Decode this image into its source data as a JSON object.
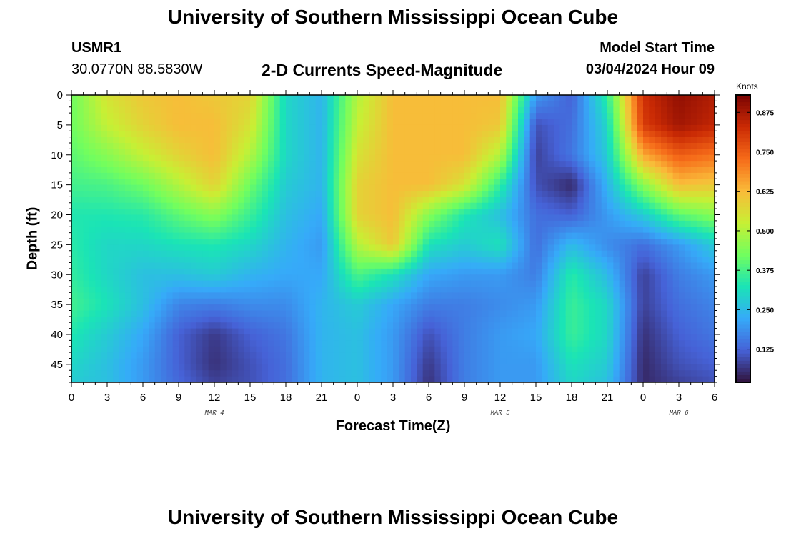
{
  "header": {
    "title": "University of Southern Mississippi Ocean Cube",
    "station_id": "USMR1",
    "coordinates": "30.0770N  88.5830W",
    "subtitle": "2-D Currents Speed-Magnitude",
    "model_start_label": "Model Start Time",
    "model_start_value": "03/04/2024 Hour 09"
  },
  "footer": {
    "title": "University of Southern Mississippi Ocean Cube"
  },
  "colorbar": {
    "units": "Knots",
    "ticks": [
      "0.125",
      "0.250",
      "0.375",
      "0.500",
      "0.625",
      "0.750",
      "0.875"
    ],
    "tick_values": [
      0.125,
      0.25,
      0.375,
      0.5,
      0.625,
      0.75,
      0.875
    ],
    "range": [
      0.02,
      0.93
    ],
    "colors": [
      "#30123b",
      "#4662d7",
      "#36aaf9",
      "#1ae4b6",
      "#72fe5e",
      "#c8ef34",
      "#faba39",
      "#f66b19",
      "#ca2a04",
      "#7a0403"
    ]
  },
  "chart_data": {
    "type": "heatmap",
    "title": "2-D Currents Speed-Magnitude",
    "xlabel": "Forecast Time(Z)",
    "ylabel": "Depth (ft)",
    "x_range_hours": [
      0,
      54
    ],
    "y_range_ft": [
      0,
      48
    ],
    "x_ticks": [
      "0",
      "3",
      "6",
      "9",
      "12",
      "15",
      "18",
      "21",
      "0",
      "3",
      "6",
      "9",
      "12",
      "15",
      "18",
      "21",
      "0",
      "3",
      "6"
    ],
    "y_ticks": [
      "0",
      "5",
      "10",
      "15",
      "20",
      "25",
      "30",
      "35",
      "40",
      "45"
    ],
    "date_labels": [
      {
        "label": "MAR 4",
        "hour": 12
      },
      {
        "label": "MAR 5",
        "hour": 36
      },
      {
        "label": "MAR 6",
        "hour": 51
      }
    ],
    "x_hours": [
      0,
      3,
      6,
      9,
      12,
      15,
      18,
      21,
      24,
      27,
      30,
      33,
      36,
      39,
      42,
      45,
      48,
      51,
      54
    ],
    "depths_ft": [
      0,
      5,
      10,
      15,
      20,
      25,
      30,
      35,
      40,
      45,
      48
    ],
    "speed_knots": [
      [
        0.42,
        0.55,
        0.6,
        0.62,
        0.6,
        0.58,
        0.3,
        0.24,
        0.5,
        0.62,
        0.62,
        0.62,
        0.62,
        0.2,
        0.12,
        0.35,
        0.82,
        0.9,
        0.86
      ],
      [
        0.42,
        0.52,
        0.58,
        0.62,
        0.62,
        0.55,
        0.3,
        0.24,
        0.52,
        0.62,
        0.62,
        0.62,
        0.6,
        0.1,
        0.14,
        0.3,
        0.8,
        0.88,
        0.84
      ],
      [
        0.4,
        0.45,
        0.52,
        0.58,
        0.62,
        0.5,
        0.3,
        0.24,
        0.55,
        0.62,
        0.62,
        0.62,
        0.5,
        0.08,
        0.15,
        0.28,
        0.65,
        0.75,
        0.72
      ],
      [
        0.37,
        0.38,
        0.42,
        0.5,
        0.58,
        0.42,
        0.28,
        0.24,
        0.58,
        0.62,
        0.62,
        0.55,
        0.35,
        0.1,
        0.05,
        0.24,
        0.45,
        0.62,
        0.6
      ],
      [
        0.33,
        0.33,
        0.34,
        0.4,
        0.45,
        0.36,
        0.26,
        0.22,
        0.58,
        0.62,
        0.45,
        0.33,
        0.26,
        0.14,
        0.12,
        0.2,
        0.28,
        0.4,
        0.45
      ],
      [
        0.34,
        0.3,
        0.3,
        0.32,
        0.33,
        0.3,
        0.24,
        0.2,
        0.5,
        0.6,
        0.32,
        0.28,
        0.32,
        0.14,
        0.25,
        0.18,
        0.14,
        0.2,
        0.28
      ],
      [
        0.35,
        0.3,
        0.26,
        0.26,
        0.28,
        0.24,
        0.22,
        0.22,
        0.38,
        0.32,
        0.22,
        0.2,
        0.2,
        0.16,
        0.34,
        0.25,
        0.08,
        0.16,
        0.2
      ],
      [
        0.37,
        0.32,
        0.26,
        0.17,
        0.16,
        0.18,
        0.18,
        0.24,
        0.28,
        0.22,
        0.16,
        0.16,
        0.18,
        0.2,
        0.36,
        0.3,
        0.08,
        0.14,
        0.17
      ],
      [
        0.33,
        0.28,
        0.22,
        0.12,
        0.07,
        0.12,
        0.15,
        0.24,
        0.26,
        0.2,
        0.1,
        0.16,
        0.2,
        0.22,
        0.36,
        0.3,
        0.06,
        0.12,
        0.15
      ],
      [
        0.3,
        0.26,
        0.2,
        0.12,
        0.06,
        0.1,
        0.14,
        0.24,
        0.26,
        0.2,
        0.07,
        0.16,
        0.2,
        0.2,
        0.32,
        0.28,
        0.05,
        0.1,
        0.12
      ],
      [
        0.28,
        0.26,
        0.2,
        0.13,
        0.08,
        0.1,
        0.14,
        0.24,
        0.26,
        0.2,
        0.06,
        0.16,
        0.2,
        0.2,
        0.3,
        0.26,
        0.05,
        0.08,
        0.1
      ]
    ]
  }
}
